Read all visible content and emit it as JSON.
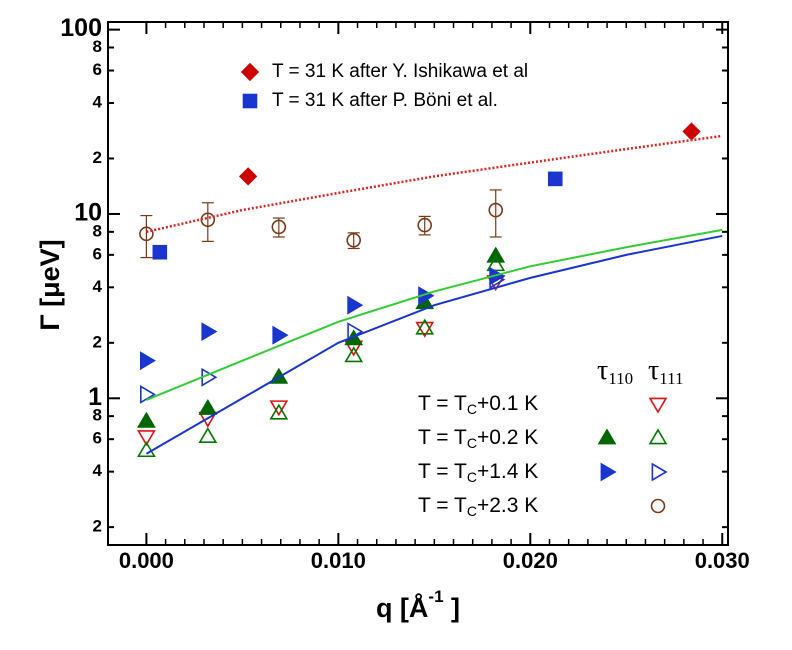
{
  "chart_data": {
    "type": "scatter",
    "xlabel": {
      "text": "q  [Å",
      "sup": "-1",
      "end": " ]"
    },
    "ylabel": "Γ  [μeV]",
    "xlim": [
      -0.002,
      0.0303
    ],
    "ylim": [
      0.16,
      110
    ],
    "log_y": true,
    "xticks": [
      {
        "value": 0,
        "label": "0.000"
      },
      {
        "value": 0.01,
        "label": "0.010"
      },
      {
        "value": 0.02,
        "label": "0.020"
      },
      {
        "value": 0.03,
        "label": "0.030"
      }
    ],
    "yticks": [
      {
        "value": 0.2,
        "label": "2"
      },
      {
        "value": 0.4,
        "label": "4"
      },
      {
        "value": 0.6,
        "label": "6"
      },
      {
        "value": 0.8,
        "label": "8"
      },
      1,
      2,
      4,
      6,
      8,
      10,
      {
        "value": 20,
        "label": "2"
      },
      {
        "value": 40,
        "label": "4"
      },
      {
        "value": 60,
        "label": "6"
      },
      {
        "value": 80,
        "label": "8"
      },
      100
    ],
    "legend_columns": [
      {
        "symbol": "τ",
        "sub": "110"
      },
      {
        "symbol": "τ",
        "sub": "111"
      }
    ],
    "legend_rows": [
      {
        "pre": "T = T",
        "sub": "C",
        "post": "+0.1 K"
      },
      {
        "pre": "T = T",
        "sub": "C",
        "post": "+0.2 K"
      },
      {
        "pre": "T = T",
        "sub": "C",
        "post": "+1.4 K"
      },
      {
        "pre": "T = T",
        "sub": "C",
        "post": "+2.3 K"
      }
    ],
    "series": [
      {
        "name": "T = 31 K after Y. Ishikawa et al",
        "marker": "diamond",
        "color": "#cc0000",
        "x": [
          0.0053,
          0.0284
        ],
        "values": [
          16,
          28
        ]
      },
      {
        "name": "T = 31 K after P. Böni et al.",
        "marker": "square",
        "color": "#1a35d0",
        "x": [
          0.0007,
          0.0213
        ],
        "values": [
          6.2,
          15.5
        ]
      },
      {
        "row": 0,
        "column": 1,
        "marker": "tri-down-open",
        "color": "#dd1111",
        "x": [
          0,
          0.0032,
          0.0069,
          0.0108,
          0.0145,
          0.0182
        ],
        "values": [
          0.62,
          0.78,
          0.9,
          1.9,
          2.4,
          4.3
        ]
      },
      {
        "row": 1,
        "column": 0,
        "marker": "tri-up",
        "color": "#006600",
        "x": [
          0,
          0.0032,
          0.0069,
          0.0108,
          0.0145,
          0.0182
        ],
        "values": [
          0.75,
          0.88,
          1.3,
          2.1,
          3.3,
          5.9
        ]
      },
      {
        "row": 1,
        "column": 1,
        "marker": "tri-up-open",
        "color": "#007700",
        "x": [
          0,
          0.0032,
          0.0069,
          0.0108,
          0.0145,
          0.0182
        ],
        "values": [
          0.52,
          0.62,
          0.83,
          1.7,
          2.4,
          5.3
        ]
      },
      {
        "row": 2,
        "column": 0,
        "marker": "tri-right",
        "color": "#1a35d0",
        "x": [
          0,
          0.0032,
          0.0069,
          0.0108,
          0.0145,
          0.0182
        ],
        "values": [
          1.6,
          2.3,
          2.2,
          3.2,
          3.6,
          4.6
        ]
      },
      {
        "row": 2,
        "column": 1,
        "marker": "tri-right-open",
        "color": "#1a35d0",
        "x": [
          0,
          0.0032,
          0.0069,
          0.0108,
          0.0145,
          0.0182
        ],
        "values": [
          1.05,
          1.3,
          2.2,
          2.3,
          3.6,
          4.4
        ]
      },
      {
        "row": 3,
        "column": 1,
        "marker": "circle-open",
        "color": "#7a3a1a",
        "x": [
          0,
          0.0032,
          0.0069,
          0.0108,
          0.0145,
          0.0182
        ],
        "values": [
          7.8,
          9.3,
          8.5,
          7.2,
          8.7,
          10.5
        ],
        "yerr": [
          2,
          2.2,
          1,
          0.7,
          1,
          3
        ]
      },
      {
        "marker": "dotted-line",
        "color": "#dd2222",
        "x": [
          0,
          0.005,
          0.01,
          0.015,
          0.02,
          0.025,
          0.03
        ],
        "values": [
          8,
          10.5,
          13,
          16,
          19,
          22.5,
          26.5
        ]
      },
      {
        "marker": "line",
        "color": "#33cc33",
        "x": [
          0,
          0.005,
          0.01,
          0.015,
          0.02,
          0.025,
          0.03
        ],
        "values": [
          0.98,
          1.6,
          2.6,
          3.8,
          5.2,
          6.6,
          8.2
        ]
      },
      {
        "marker": "line",
        "color": "#1a35d0",
        "x": [
          0,
          0.005,
          0.01,
          0.015,
          0.02,
          0.025,
          0.03
        ],
        "values": [
          0.5,
          1.0,
          2.0,
          3.2,
          4.5,
          6.0,
          7.6
        ]
      }
    ]
  }
}
